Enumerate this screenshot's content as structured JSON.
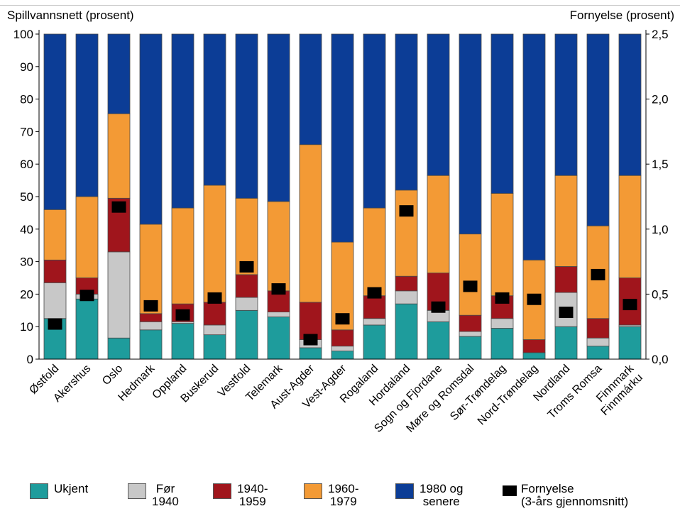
{
  "chart_data": {
    "type": "bar",
    "stacked": true,
    "y_left_label": "Spillvannsnett (prosent)",
    "y_right_label": "Fornyelse (prosent)",
    "ylim_left": [
      0,
      100
    ],
    "ylim_right": [
      0,
      2.5
    ],
    "y_left_ticks": [
      "0",
      "10",
      "20",
      "30",
      "40",
      "50",
      "60",
      "70",
      "80",
      "90",
      "100"
    ],
    "y_right_ticks": [
      "0,0",
      "0,5",
      "1,0",
      "1,5",
      "2,0",
      "2,5"
    ],
    "categories": [
      [
        "Østfold"
      ],
      [
        "Akershus"
      ],
      [
        "Oslo"
      ],
      [
        "Hedmark"
      ],
      [
        "Oppland"
      ],
      [
        "Buskerud"
      ],
      [
        "Vestfold"
      ],
      [
        "Telemark"
      ],
      [
        "Aust-Agder"
      ],
      [
        "Vest-Agder"
      ],
      [
        "Rogaland"
      ],
      [
        "Hordaland"
      ],
      [
        "Sogn og Fjordane"
      ],
      [
        "Møre og Romsdal"
      ],
      [
        "Sør-Trøndelag"
      ],
      [
        "Nord-Trøndelag"
      ],
      [
        "Nordland"
      ],
      [
        "Troms Romsa"
      ],
      [
        "Finnmark",
        "Finnmárku"
      ]
    ],
    "series": [
      {
        "name": "Ukjent",
        "color": "#1e9c9c",
        "values": [
          12.5,
          18.5,
          6.5,
          9,
          11,
          7.5,
          15,
          13,
          3.5,
          2.5,
          10.5,
          17,
          11.5,
          7,
          9.5,
          2,
          10,
          4,
          10
        ]
      },
      {
        "name": "Før 1940",
        "color": "#c8c8c8",
        "values": [
          11,
          1.5,
          26.5,
          2.5,
          0.5,
          3,
          4,
          1.5,
          2.5,
          1.5,
          2,
          4,
          3.5,
          1.5,
          3,
          0,
          10.5,
          2.5,
          0.5
        ]
      },
      {
        "name": "1940-1959",
        "color": "#a0151c",
        "values": [
          7,
          5,
          16.5,
          2.5,
          5.5,
          7,
          7,
          6.5,
          11.5,
          5,
          7,
          4.5,
          11.5,
          5,
          7,
          4,
          8,
          6,
          14.5
        ]
      },
      {
        "name": "1960-1979",
        "color": "#f39a35",
        "values": [
          15.5,
          25,
          26,
          27.5,
          29.5,
          36,
          23.5,
          27.5,
          48.5,
          27,
          27,
          26.5,
          30,
          25,
          31.5,
          24.5,
          28,
          28.5,
          31.5
        ]
      },
      {
        "name": "1980 og senere",
        "color": "#0c3d96",
        "values": [
          54,
          50,
          24.5,
          58.5,
          53.5,
          46.5,
          50.5,
          51.5,
          34,
          64,
          53.5,
          48,
          43.5,
          61.5,
          49,
          69.5,
          43.5,
          59,
          43.5
        ]
      }
    ],
    "fornyelse": {
      "name": "Fornyelse (3-års gjennomsnitt)",
      "color": "#000000",
      "values": [
        0.27,
        0.49,
        1.17,
        0.41,
        0.34,
        0.47,
        0.71,
        0.54,
        0.15,
        0.31,
        0.51,
        1.14,
        0.4,
        0.56,
        0.47,
        0.46,
        0.36,
        0.65,
        0.42
      ]
    },
    "grid": false,
    "legend_position": "bottom"
  },
  "legend": [
    {
      "label": "Ukjent"
    },
    {
      "label": "Før\n1940"
    },
    {
      "label": "1940-\n1959"
    },
    {
      "label": "1960-\n1979"
    },
    {
      "label": "1980 og\nsenere"
    },
    {
      "label": "Fornyelse\n(3-års gjennomsnitt)"
    }
  ]
}
